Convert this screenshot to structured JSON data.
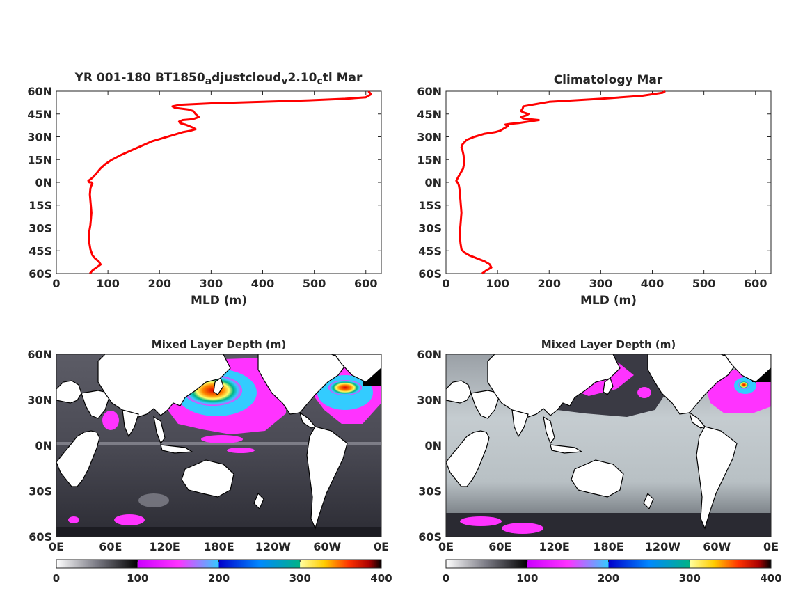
{
  "chart_data": [
    {
      "type": "line",
      "title_main": "YR 001-180 BT1850",
      "title_sub1": "a",
      "title_mid": "djustcloud",
      "title_sub2": "v",
      "title_mid2": "2.10",
      "title_sub3": "c",
      "title_end": "tl Mar",
      "xlabel": "MLD (m)",
      "xlim": [
        0,
        630
      ],
      "ylim": [
        -60,
        60
      ],
      "xticks": [
        0,
        100,
        200,
        300,
        400,
        500,
        600
      ],
      "yticks": [
        "60S",
        "45S",
        "30S",
        "15S",
        "0N",
        "15N",
        "30N",
        "45N",
        "60N"
      ],
      "line_color": "#ff0000",
      "series": [
        {
          "x": [
            65,
            70,
            78,
            86,
            82,
            75,
            70,
            68,
            66,
            64,
            63,
            64,
            66,
            67,
            68,
            67,
            66,
            65,
            66,
            68,
            70,
            68,
            64,
            62,
            70,
            78,
            85,
            95,
            108,
            125,
            145,
            165,
            185,
            205,
            225,
            245,
            260,
            270,
            265,
            258,
            250,
            240,
            238,
            245,
            262,
            268,
            276,
            270,
            265,
            255,
            230,
            225,
            240,
            300,
            400,
            490,
            560,
            600,
            610,
            605
          ],
          "y": [
            -60,
            -58,
            -56,
            -54,
            -52,
            -50,
            -48,
            -46,
            -44,
            -40,
            -36,
            -32,
            -28,
            -24,
            -20,
            -16,
            -12,
            -8,
            -4,
            -2,
            -1,
            0,
            0,
            1,
            3,
            6,
            9,
            12,
            15,
            18,
            21,
            24,
            27,
            29,
            31,
            33,
            34,
            35,
            36,
            37,
            38,
            39,
            40,
            41,
            41.5,
            42,
            43,
            45,
            47,
            48,
            49,
            50,
            51,
            52,
            53,
            54,
            55,
            56,
            58,
            60
          ]
        }
      ]
    },
    {
      "type": "line",
      "title": "Climatology Mar",
      "xlabel": "MLD (m)",
      "xlim": [
        0,
        630
      ],
      "ylim": [
        -60,
        60
      ],
      "xticks": [
        0,
        100,
        200,
        300,
        400,
        500,
        600
      ],
      "yticks": [
        "60S",
        "45S",
        "30S",
        "15S",
        "0N",
        "15N",
        "30N",
        "45N",
        "60N"
      ],
      "line_color": "#ff0000",
      "series": [
        {
          "x": [
            70,
            78,
            88,
            85,
            75,
            60,
            45,
            35,
            30,
            28,
            27,
            27,
            28,
            29,
            30,
            29,
            28,
            27,
            26,
            25,
            24,
            22,
            20,
            23,
            28,
            33,
            35,
            35,
            34,
            32,
            30,
            32,
            40,
            55,
            75,
            95,
            105,
            110,
            120,
            115,
            125,
            140,
            160,
            180,
            150,
            145,
            155,
            160,
            150,
            145,
            148,
            150,
            200,
            300,
            380,
            420,
            425
          ],
          "y": [
            -60,
            -58,
            -56,
            -54,
            -52,
            -50,
            -48,
            -46,
            -44,
            -40,
            -36,
            -32,
            -28,
            -24,
            -20,
            -16,
            -12,
            -8,
            -4,
            -2,
            -1,
            0,
            1,
            3,
            6,
            9,
            12,
            15,
            18,
            21,
            23,
            25,
            28,
            30,
            32,
            33,
            34,
            35,
            37,
            38,
            38.5,
            39,
            40,
            41,
            42,
            43,
            44,
            45,
            46,
            47,
            48,
            50,
            53,
            55,
            57,
            59,
            60
          ]
        }
      ]
    },
    {
      "type": "heatmap",
      "title": "Mixed Layer Depth (m)",
      "xticks": [
        "0E",
        "60E",
        "120E",
        "180E",
        "120W",
        "60W",
        "0E"
      ],
      "yticks": [
        "60S",
        "30S",
        "0N",
        "30N",
        "60N"
      ],
      "colorbar_ticks": [
        0,
        100,
        200,
        300,
        400
      ],
      "colorbar_range": [
        0,
        400
      ]
    },
    {
      "type": "heatmap",
      "title": "Mixed Layer Depth (m)",
      "xticks": [
        "0E",
        "60E",
        "120E",
        "180E",
        "120W",
        "60W",
        "0E"
      ],
      "yticks": [
        "60S",
        "30S",
        "0N",
        "30N",
        "60N"
      ],
      "colorbar_ticks": [
        0,
        100,
        200,
        300,
        400
      ],
      "colorbar_range": [
        0,
        400
      ]
    }
  ],
  "colors": {
    "line": "#ff0000",
    "land": "#ffffff",
    "ocean_deep": "#3a3a44",
    "ocean_mid": "#6a6a74",
    "ocean_light": "#cfd6d8",
    "magenta": "#ff33ff",
    "cyan": "#33ccff",
    "blue": "#1a1aff",
    "green": "#00b386",
    "yellow": "#ffff66",
    "orange": "#ff8800",
    "red": "#dd0000",
    "black": "#000000"
  }
}
